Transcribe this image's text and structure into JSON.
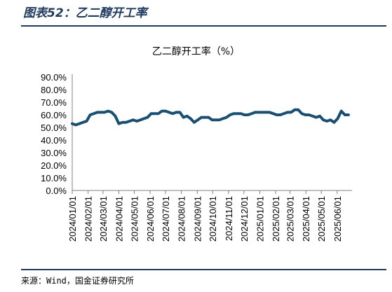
{
  "figure": {
    "title": "图表52：乙二醇开工率",
    "source": "来源：Wind，国金证券研究所"
  },
  "chart_data": {
    "type": "line",
    "title": "乙二醇开工率（%）",
    "xlabel": "",
    "ylabel": "",
    "ylim": [
      0,
      90
    ],
    "yticks": [
      "0.0%",
      "10.0%",
      "20.0%",
      "30.0%",
      "40.0%",
      "50.0%",
      "60.0%",
      "70.0%",
      "80.0%",
      "90.0%"
    ],
    "xticks": [
      "2024/01/01",
      "2024/02/01",
      "2024/03/01",
      "2024/04/01",
      "2024/05/01",
      "2024/06/01",
      "2024/07/01",
      "2024/08/01",
      "2024/09/01",
      "2024/10/01",
      "2024/11/01",
      "2024/12/01",
      "2025/01/01",
      "2025/02/01",
      "2025/03/01",
      "2025/04/01",
      "2025/05/01",
      "2025/06/01"
    ],
    "grid": false,
    "legend": "none",
    "line_color": "#1a4f74",
    "series": [
      {
        "x": [
          "2024/01/01",
          "2024/01/08",
          "2024/01/15",
          "2024/01/22",
          "2024/01/29",
          "2024/02/05",
          "2024/02/12",
          "2024/02/19",
          "2024/02/26",
          "2024/03/04",
          "2024/03/11",
          "2024/03/18",
          "2024/03/25",
          "2024/04/01",
          "2024/04/08",
          "2024/04/15",
          "2024/04/22",
          "2024/04/29",
          "2024/05/06",
          "2024/05/13",
          "2024/05/20",
          "2024/05/27",
          "2024/06/03",
          "2024/06/10",
          "2024/06/17",
          "2024/06/24",
          "2024/07/01",
          "2024/07/08",
          "2024/07/15",
          "2024/07/22",
          "2024/07/29",
          "2024/08/05",
          "2024/08/12",
          "2024/08/19",
          "2024/08/26",
          "2024/09/02",
          "2024/09/09",
          "2024/09/16",
          "2024/09/23",
          "2024/09/30",
          "2024/10/07",
          "2024/10/14",
          "2024/10/21",
          "2024/10/28",
          "2024/11/04",
          "2024/11/11",
          "2024/11/18",
          "2024/11/25",
          "2024/12/02",
          "2024/12/09",
          "2024/12/16",
          "2024/12/23",
          "2024/12/30",
          "2025/01/06",
          "2025/01/13",
          "2025/01/20",
          "2025/01/27",
          "2025/02/03",
          "2025/02/10",
          "2025/02/17",
          "2025/02/24",
          "2025/03/03",
          "2025/03/10",
          "2025/03/17",
          "2025/03/24",
          "2025/03/31",
          "2025/04/07",
          "2025/04/14",
          "2025/04/21",
          "2025/04/28",
          "2025/05/05",
          "2025/05/12",
          "2025/05/19",
          "2025/05/26",
          "2025/06/02",
          "2025/06/09",
          "2025/06/16",
          "2025/06/23"
        ],
        "values": [
          53,
          52,
          53,
          54,
          55,
          60,
          61,
          62,
          62,
          62,
          63,
          62,
          59,
          53,
          54,
          54,
          55,
          56,
          55,
          56,
          57,
          58,
          61,
          61,
          61,
          63,
          63,
          62,
          61,
          62,
          62,
          58,
          59,
          57,
          54,
          56,
          58,
          58,
          58,
          56,
          56,
          56,
          57,
          58,
          60,
          61,
          61,
          61,
          60,
          60,
          61,
          62,
          62,
          62,
          62,
          62,
          61,
          60,
          60,
          61,
          62,
          62,
          64,
          64,
          61,
          60,
          60,
          59,
          58,
          59,
          56,
          55,
          56,
          54,
          57,
          63,
          60,
          60
        ]
      }
    ]
  }
}
